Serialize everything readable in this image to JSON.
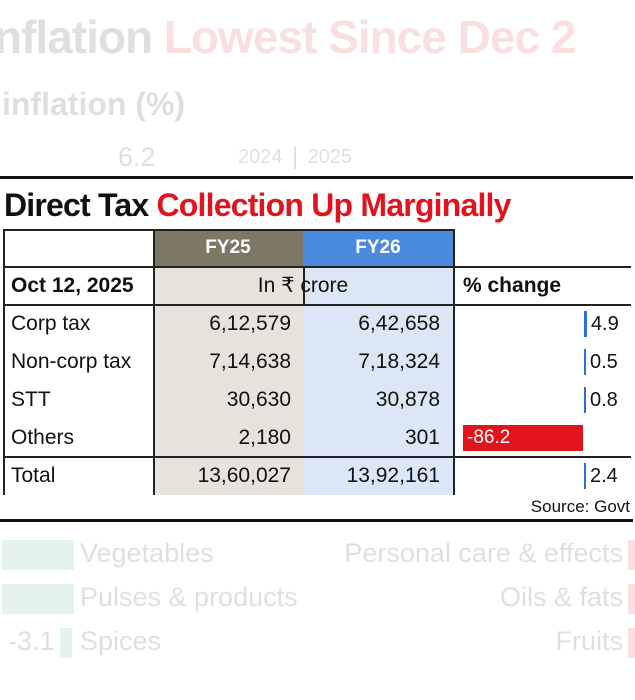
{
  "background_article": {
    "headline_dark": "nflation",
    "headline_red": "Lowest Since Dec 2",
    "subheading": "inflation (%)",
    "value": "6.2",
    "years": [
      "2024",
      "2025"
    ],
    "left_items": [
      {
        "label": "Vegetables",
        "value": ""
      },
      {
        "label": "Pulses & products",
        "value": ""
      },
      {
        "label": "Spices",
        "value": "-3.1"
      }
    ],
    "right_items": [
      "Personal care & effects",
      "Oils & fats",
      "Fruits"
    ]
  },
  "title": {
    "part1": "Direct Tax",
    "part2": "Collection Up Marginally"
  },
  "colors": {
    "fy25_header": "#7d7765",
    "fy26_header": "#4a8be0",
    "fy25_col": "#e6e3dc",
    "fy26_col": "#dbe7f6",
    "positive_bar": "#2f6fce",
    "negative_bar": "#e1141e",
    "title_red": "#e1141e"
  },
  "chart_data": {
    "type": "table",
    "title": "Direct Tax Collection Up Marginally",
    "columns": [
      "FY25",
      "FY26"
    ],
    "date_label": "Oct 12, 2025",
    "unit_label": "In ₹ crore",
    "change_label": "% change",
    "rows": [
      {
        "label": "Corp tax",
        "fy25": "6,12,579",
        "fy26": "6,42,658",
        "change": 4.9
      },
      {
        "label": "Non-corp tax",
        "fy25": "7,14,638",
        "fy26": "7,18,324",
        "change": 0.5
      },
      {
        "label": "STT",
        "fy25": "30,630",
        "fy26": "30,878",
        "change": 0.8
      },
      {
        "label": "Others",
        "fy25": "2,180",
        "fy26": "301",
        "change": -86.2
      },
      {
        "label": "Total",
        "fy25": "13,60,027",
        "fy26": "13,92,161",
        "change": 2.4
      }
    ],
    "source": "Source: Govt"
  }
}
